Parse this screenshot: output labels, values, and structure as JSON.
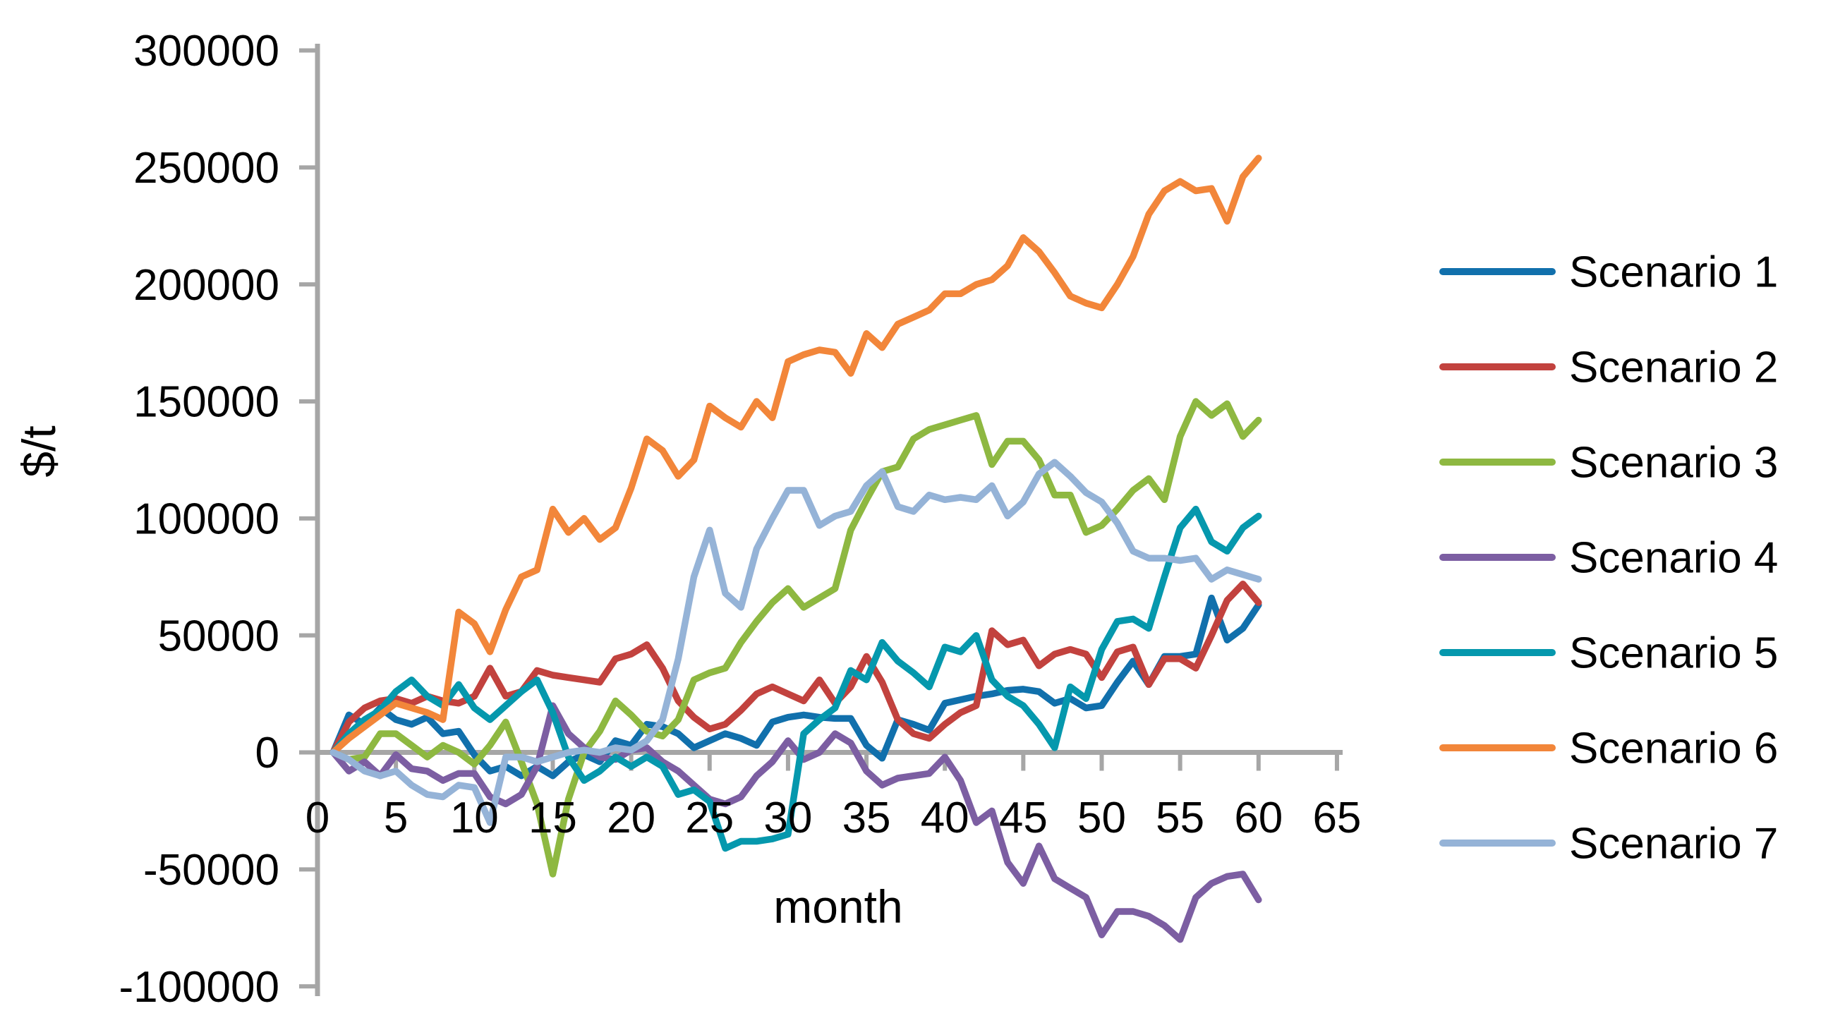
{
  "page": {
    "background": "#FFFFFF"
  },
  "chart_data": {
    "type": "line",
    "title": "",
    "xlabel": "month",
    "ylabel": "$/t",
    "grid": false,
    "legend_position": "right",
    "axis_color": "#A6A6A6",
    "text_color": "#000000",
    "xlim": [
      0,
      65
    ],
    "ylim": [
      -100000,
      300000
    ],
    "x_ticks": [
      0,
      5,
      10,
      15,
      20,
      25,
      30,
      35,
      40,
      45,
      50,
      55,
      60,
      65
    ],
    "y_ticks": [
      300000,
      250000,
      200000,
      150000,
      100000,
      50000,
      0,
      -50000,
      -100000
    ],
    "months": [
      1,
      2,
      3,
      4,
      5,
      6,
      7,
      8,
      9,
      10,
      11,
      12,
      13,
      14,
      15,
      16,
      17,
      18,
      19,
      20,
      21,
      22,
      23,
      24,
      25,
      26,
      27,
      28,
      29,
      30,
      31,
      32,
      33,
      34,
      35,
      36,
      37,
      38,
      39,
      40,
      41,
      42,
      43,
      44,
      45,
      46,
      47,
      48,
      49,
      50,
      51,
      52,
      53,
      54,
      55,
      56,
      57,
      58,
      59,
      60
    ],
    "series": [
      {
        "name": "Scenario 1",
        "color": "#1170AC",
        "values": [
          0,
          16000,
          12000,
          19000,
          14000,
          12000,
          15000,
          8000,
          9000,
          -1000,
          -8000,
          -6000,
          -10000,
          -6000,
          -10000,
          -4000,
          -1000,
          -4000,
          5000,
          3000,
          12000,
          11000,
          8000,
          2000,
          5000,
          8000,
          6000,
          3000,
          13000,
          15000,
          16000,
          15000,
          14500,
          14500,
          3000,
          -2500,
          14000,
          12000,
          9500,
          21000,
          22500,
          24000,
          25000,
          26500,
          27000,
          26000,
          21000,
          23000,
          19000,
          20000,
          30000,
          39000,
          29000,
          41000,
          41000,
          42000,
          66000,
          48000,
          53000,
          63000
        ]
      },
      {
        "name": "Scenario 2",
        "color": "#C2423E",
        "values": [
          0,
          13000,
          19000,
          22000,
          23000,
          21000,
          24000,
          22000,
          21000,
          24000,
          36000,
          24000,
          26000,
          35000,
          33000,
          32000,
          31000,
          30000,
          40000,
          42000,
          46000,
          36000,
          22000,
          15000,
          10000,
          12000,
          18000,
          25000,
          28000,
          25000,
          22000,
          31000,
          21000,
          28000,
          41000,
          30000,
          14000,
          8000,
          6000,
          12000,
          17000,
          20000,
          52000,
          46000,
          48000,
          37000,
          42000,
          44000,
          42000,
          32000,
          43000,
          45000,
          29000,
          40000,
          40000,
          36000,
          50000,
          65000,
          72000,
          64000
        ]
      },
      {
        "name": "Scenario 3",
        "color": "#8EB841",
        "values": [
          0,
          -3000,
          -2000,
          8000,
          8000,
          3000,
          -2000,
          3000,
          0,
          -5000,
          3000,
          13000,
          -4000,
          -22000,
          -52000,
          -20000,
          0,
          9000,
          22000,
          16000,
          9000,
          7000,
          14000,
          31000,
          34000,
          36000,
          47000,
          56000,
          64000,
          70000,
          62000,
          66000,
          70000,
          95000,
          108000,
          120000,
          122000,
          134000,
          138000,
          140000,
          142000,
          144000,
          123000,
          133000,
          133000,
          125000,
          110000,
          110000,
          94000,
          97000,
          104000,
          112000,
          117000,
          108000,
          135000,
          150000,
          144000,
          149000,
          135000,
          142000
        ]
      },
      {
        "name": "Scenario 4",
        "color": "#7C5EA2",
        "values": [
          0,
          -8000,
          -4000,
          -10000,
          -1000,
          -7000,
          -8000,
          -12000,
          -9000,
          -9000,
          -19000,
          -22000,
          -18000,
          -6000,
          20000,
          8000,
          2000,
          -2000,
          -3000,
          1000,
          2000,
          -4000,
          -8000,
          -14000,
          -20000,
          -22000,
          -19000,
          -10000,
          -4000,
          5000,
          -3000,
          0,
          8000,
          4000,
          -8000,
          -14000,
          -11000,
          -10000,
          -9000,
          -2000,
          -12000,
          -30000,
          -25000,
          -47000,
          -56000,
          -40000,
          -54000,
          -58000,
          -62000,
          -78000,
          -68000,
          -68000,
          -70000,
          -74000,
          -80000,
          -62000,
          -56000,
          -53000,
          -52000,
          -63000
        ]
      },
      {
        "name": "Scenario 5",
        "color": "#0598AD",
        "values": [
          0,
          8000,
          14000,
          18000,
          26000,
          31000,
          24000,
          20000,
          29000,
          19000,
          14000,
          20000,
          26000,
          31000,
          17000,
          -2000,
          -12000,
          -8000,
          -2000,
          -6000,
          -2000,
          -6000,
          -18000,
          -16000,
          -21000,
          -41000,
          -38000,
          -38000,
          -37000,
          -35000,
          8000,
          14000,
          19000,
          35000,
          31000,
          47000,
          39000,
          34000,
          28000,
          45000,
          43000,
          50000,
          31000,
          24000,
          20000,
          12000,
          2000,
          28000,
          23000,
          44000,
          56000,
          57000,
          53000,
          75000,
          96000,
          104000,
          90000,
          86000,
          96000,
          101000
        ]
      },
      {
        "name": "Scenario 6",
        "color": "#F2863A",
        "values": [
          0,
          6000,
          11000,
          16000,
          21000,
          19000,
          17000,
          14000,
          60000,
          55000,
          43000,
          61000,
          75000,
          78000,
          104000,
          94000,
          100000,
          91000,
          96000,
          113000,
          134000,
          129000,
          118000,
          125000,
          148000,
          143000,
          139000,
          150000,
          143000,
          167000,
          170000,
          172000,
          171000,
          162000,
          179000,
          173000,
          183000,
          186000,
          189000,
          196000,
          196000,
          200000,
          202000,
          208000,
          220000,
          214000,
          205000,
          195000,
          192000,
          190000,
          200000,
          212000,
          230000,
          240000,
          244000,
          240000,
          241000,
          227000,
          246000,
          254000
        ]
      },
      {
        "name": "Scenario 7",
        "color": "#95B3D7",
        "values": [
          0,
          -3000,
          -8000,
          -10000,
          -8000,
          -14000,
          -18000,
          -19000,
          -14000,
          -15000,
          -30000,
          -2000,
          -2000,
          -4000,
          -2000,
          0,
          1000,
          0,
          2000,
          1000,
          5000,
          14000,
          40000,
          75000,
          95000,
          68000,
          62000,
          87000,
          100000,
          112000,
          112000,
          97000,
          101000,
          103000,
          114000,
          120000,
          105000,
          103000,
          110000,
          108000,
          109000,
          108000,
          114000,
          101000,
          107000,
          119000,
          124000,
          118000,
          111000,
          107000,
          98000,
          86000,
          83000,
          83000,
          82000,
          83000,
          74000,
          78000,
          76000,
          74000
        ]
      }
    ]
  }
}
